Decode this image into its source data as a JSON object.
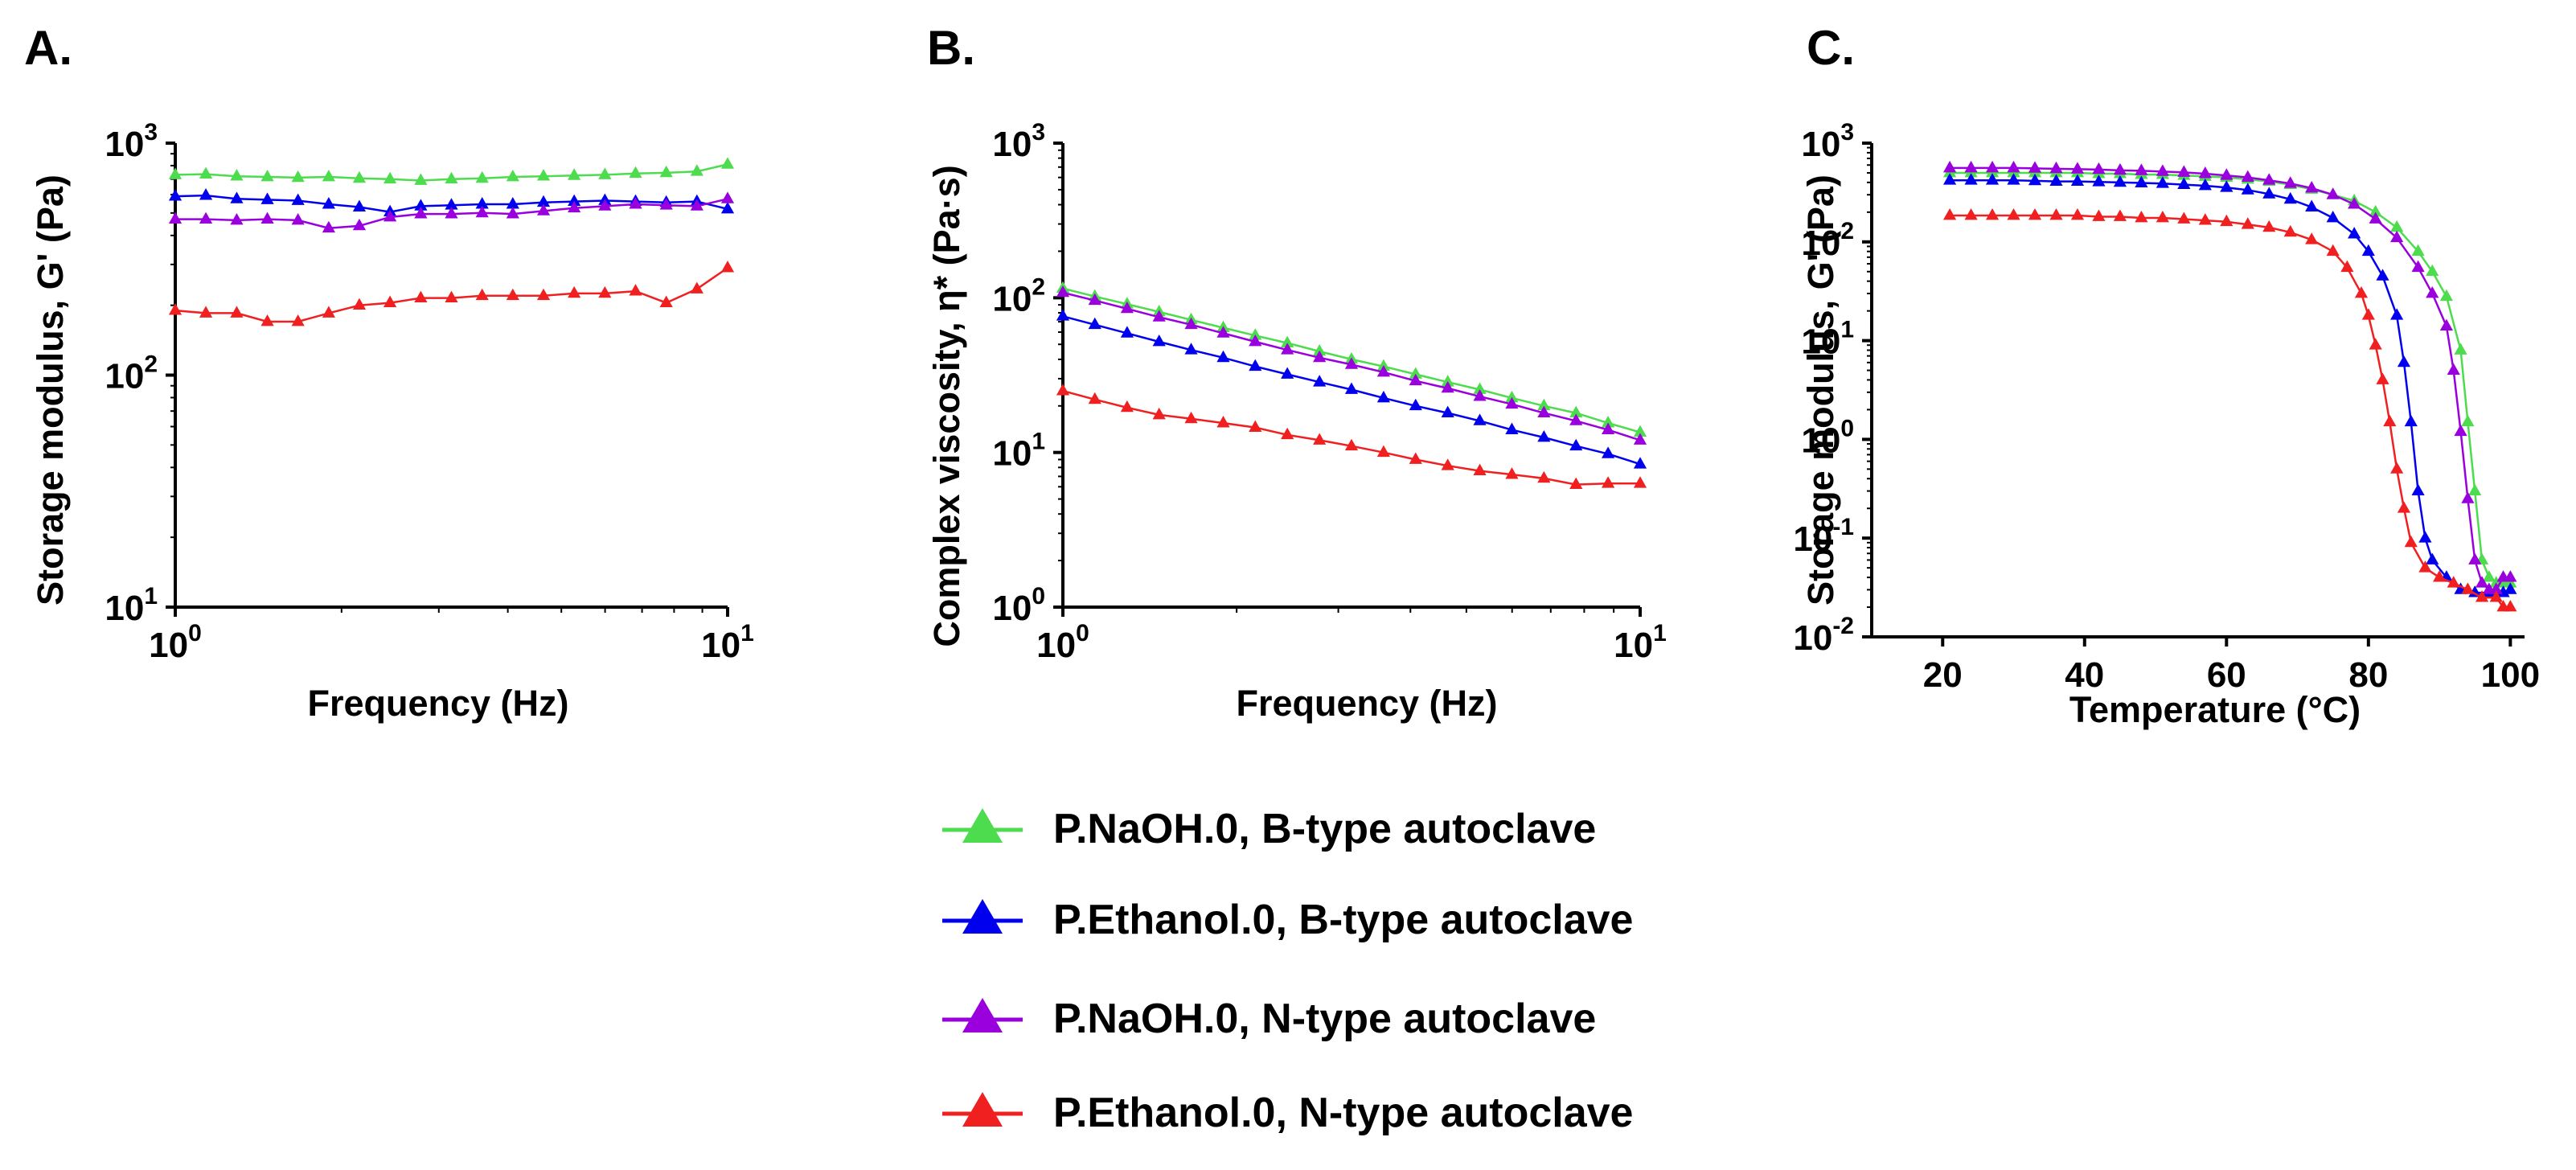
{
  "series_styles": [
    {
      "name": "P.NaOH.0, B-type autoclave",
      "color": "#4ddc4d"
    },
    {
      "name": "P.Ethanol.0, B-type autoclave",
      "color": "#0000ee"
    },
    {
      "name": "P.NaOH.0, N-type autoclave",
      "color": "#9900dd"
    },
    {
      "name": "P.Ethanol.0, N-type autoclave",
      "color": "#f02020"
    }
  ],
  "legend": {
    "items": [
      "P.NaOH.0, B-type autoclave",
      "P.Ethanol.0, B-type autoclave",
      "P.NaOH.0, N-type autoclave",
      "P.Ethanol.0, N-type autoclave"
    ]
  },
  "chart_data": [
    {
      "panel_label": "A.",
      "type": "line",
      "xscale": "log",
      "yscale": "log",
      "xlabel": "Frequency (Hz)",
      "ylabel": "Storage modulus, G' (Pa)",
      "xlim": [
        1,
        10
      ],
      "ylim": [
        10,
        1000
      ],
      "xticks": [
        {
          "value": 1,
          "base": "10",
          "exp": "0"
        },
        {
          "value": 10,
          "base": "10",
          "exp": "1"
        }
      ],
      "yticks": [
        {
          "value": 10,
          "base": "10",
          "exp": "1"
        },
        {
          "value": 100,
          "base": "10",
          "exp": "2"
        },
        {
          "value": 1000,
          "base": "10",
          "exp": "3"
        }
      ],
      "x": [
        1,
        1.136,
        1.292,
        1.468,
        1.668,
        1.896,
        2.154,
        2.448,
        2.783,
        3.162,
        3.594,
        4.084,
        4.642,
        5.275,
        5.995,
        6.813,
        7.743,
        8.799,
        10
      ],
      "series": [
        {
          "name": "P.NaOH.0, B-type autoclave",
          "values": [
            730,
            735,
            720,
            715,
            710,
            715,
            705,
            700,
            690,
            700,
            705,
            715,
            720,
            725,
            730,
            740,
            745,
            755,
            810
          ]
        },
        {
          "name": "P.Ethanol.0, B-type autoclave",
          "values": [
            590,
            595,
            575,
            570,
            565,
            545,
            530,
            505,
            535,
            540,
            545,
            545,
            555,
            560,
            565,
            560,
            555,
            560,
            520
          ]
        },
        {
          "name": "P.NaOH.0, N-type autoclave",
          "values": [
            470,
            470,
            465,
            470,
            465,
            430,
            440,
            480,
            495,
            495,
            500,
            495,
            510,
            525,
            535,
            545,
            540,
            535,
            575
          ]
        },
        {
          "name": "P.Ethanol.0, N-type autoclave",
          "values": [
            190,
            185,
            185,
            170,
            170,
            185,
            200,
            205,
            215,
            215,
            220,
            220,
            220,
            225,
            225,
            230,
            205,
            235,
            290
          ]
        }
      ]
    },
    {
      "panel_label": "B.",
      "type": "line",
      "xscale": "log",
      "yscale": "log",
      "xlabel": "Frequency (Hz)",
      "ylabel": "Complex viscosity, η* (Pa·s)",
      "xlim": [
        1,
        10
      ],
      "ylim": [
        1,
        1000
      ],
      "xticks": [
        {
          "value": 1,
          "base": "10",
          "exp": "0"
        },
        {
          "value": 10,
          "base": "10",
          "exp": "1"
        }
      ],
      "yticks": [
        {
          "value": 1,
          "base": "10",
          "exp": "0"
        },
        {
          "value": 10,
          "base": "10",
          "exp": "1"
        },
        {
          "value": 100,
          "base": "10",
          "exp": "2"
        },
        {
          "value": 1000,
          "base": "10",
          "exp": "3"
        }
      ],
      "x": [
        1,
        1.136,
        1.292,
        1.468,
        1.668,
        1.896,
        2.154,
        2.448,
        2.783,
        3.162,
        3.594,
        4.084,
        4.642,
        5.275,
        5.995,
        6.813,
        7.743,
        8.799,
        10
      ],
      "series": [
        {
          "name": "P.NaOH.0, B-type autoclave",
          "values": [
            115,
            102,
            91,
            81,
            72,
            64,
            57,
            51,
            45,
            40,
            36,
            32,
            28.5,
            25.5,
            22.5,
            20,
            18,
            15.5,
            13.5
          ]
        },
        {
          "name": "P.Ethanol.0, B-type autoclave",
          "values": [
            76,
            67,
            59,
            52,
            46,
            41,
            36,
            32,
            28.5,
            25.5,
            22.5,
            20,
            18,
            16,
            14,
            12.5,
            11,
            9.8,
            8.4
          ]
        },
        {
          "name": "P.NaOH.0, N-type autoclave",
          "values": [
            108,
            96,
            85,
            75,
            67,
            59,
            52,
            46,
            41,
            37,
            33,
            29,
            26,
            23,
            20.5,
            18,
            16,
            14,
            12
          ]
        },
        {
          "name": "P.Ethanol.0, N-type autoclave",
          "values": [
            25,
            22,
            19.5,
            17.5,
            16.5,
            15.5,
            14.5,
            13,
            12,
            11,
            10,
            9,
            8.2,
            7.6,
            7.2,
            6.8,
            6.2,
            6.3,
            6.3
          ]
        }
      ]
    },
    {
      "panel_label": "C.",
      "type": "line",
      "xscale": "linear",
      "yscale": "log",
      "xlabel": "Temperature (°C)",
      "ylabel": "Storage modulus, G' (Pa)",
      "xlim": [
        10,
        102
      ],
      "ylim": [
        0.01,
        1000
      ],
      "xticks": [
        {
          "value": 20,
          "label": "20"
        },
        {
          "value": 40,
          "label": "40"
        },
        {
          "value": 60,
          "label": "60"
        },
        {
          "value": 80,
          "label": "80"
        },
        {
          "value": 100,
          "label": "100"
        }
      ],
      "yticks": [
        {
          "value": 0.01,
          "base": "10",
          "exp": "-2"
        },
        {
          "value": 0.1,
          "base": "10",
          "exp": "-1"
        },
        {
          "value": 1,
          "base": "10",
          "exp": "0"
        },
        {
          "value": 10,
          "base": "10",
          "exp": "1"
        },
        {
          "value": 100,
          "base": "10",
          "exp": "2"
        },
        {
          "value": 1000,
          "base": "10",
          "exp": "3"
        }
      ],
      "series": [
        {
          "name": "P.NaOH.0, B-type autoclave",
          "x": [
            21,
            24,
            27,
            30,
            33,
            36,
            39,
            42,
            45,
            48,
            51,
            54,
            57,
            60,
            63,
            66,
            69,
            72,
            75,
            78,
            81,
            84,
            87,
            89,
            91,
            93,
            94,
            95,
            96,
            97,
            98,
            99,
            100
          ],
          "values": [
            500,
            500,
            500,
            500,
            500,
            500,
            500,
            490,
            490,
            480,
            480,
            470,
            460,
            450,
            430,
            410,
            380,
            340,
            300,
            260,
            200,
            140,
            80,
            50,
            28,
            8,
            1.5,
            0.3,
            0.06,
            0.04,
            0.035,
            0.035,
            0.035
          ]
        },
        {
          "name": "P.Ethanol.0, B-type autoclave",
          "x": [
            21,
            24,
            27,
            30,
            33,
            36,
            39,
            42,
            45,
            48,
            51,
            54,
            57,
            60,
            63,
            66,
            69,
            72,
            75,
            78,
            80,
            82,
            84,
            85,
            86,
            87,
            88,
            89,
            91,
            93,
            95,
            97,
            99,
            100
          ],
          "values": [
            420,
            420,
            420,
            420,
            415,
            410,
            410,
            405,
            400,
            395,
            390,
            380,
            370,
            355,
            335,
            305,
            270,
            225,
            175,
            120,
            80,
            45,
            18,
            6,
            1.5,
            0.3,
            0.1,
            0.06,
            0.04,
            0.03,
            0.028,
            0.028,
            0.028,
            0.03
          ]
        },
        {
          "name": "P.NaOH.0, N-type autoclave",
          "x": [
            21,
            24,
            27,
            30,
            33,
            36,
            39,
            42,
            45,
            48,
            51,
            54,
            57,
            60,
            63,
            66,
            69,
            72,
            75,
            78,
            81,
            84,
            87,
            89,
            91,
            92,
            93,
            94,
            95,
            96,
            97,
            98,
            99,
            100
          ],
          "values": [
            560,
            560,
            560,
            560,
            555,
            550,
            545,
            540,
            530,
            525,
            515,
            505,
            490,
            470,
            450,
            420,
            390,
            350,
            300,
            240,
            170,
            110,
            55,
            30,
            14,
            5,
            1.2,
            0.25,
            0.06,
            0.035,
            0.03,
            0.03,
            0.04,
            0.04
          ]
        },
        {
          "name": "P.Ethanol.0, N-type autoclave",
          "x": [
            21,
            24,
            27,
            30,
            33,
            36,
            39,
            42,
            45,
            48,
            51,
            54,
            57,
            60,
            63,
            66,
            69,
            72,
            75,
            77,
            79,
            80,
            81,
            82,
            83,
            84,
            85,
            86,
            88,
            90,
            92,
            94,
            96,
            98,
            99,
            100
          ],
          "values": [
            185,
            185,
            185,
            185,
            185,
            185,
            185,
            180,
            180,
            175,
            175,
            170,
            165,
            160,
            150,
            140,
            125,
            105,
            80,
            55,
            30,
            18,
            9,
            4,
            1.5,
            0.5,
            0.2,
            0.09,
            0.05,
            0.04,
            0.035,
            0.03,
            0.025,
            0.025,
            0.02,
            0.02
          ]
        }
      ]
    }
  ]
}
